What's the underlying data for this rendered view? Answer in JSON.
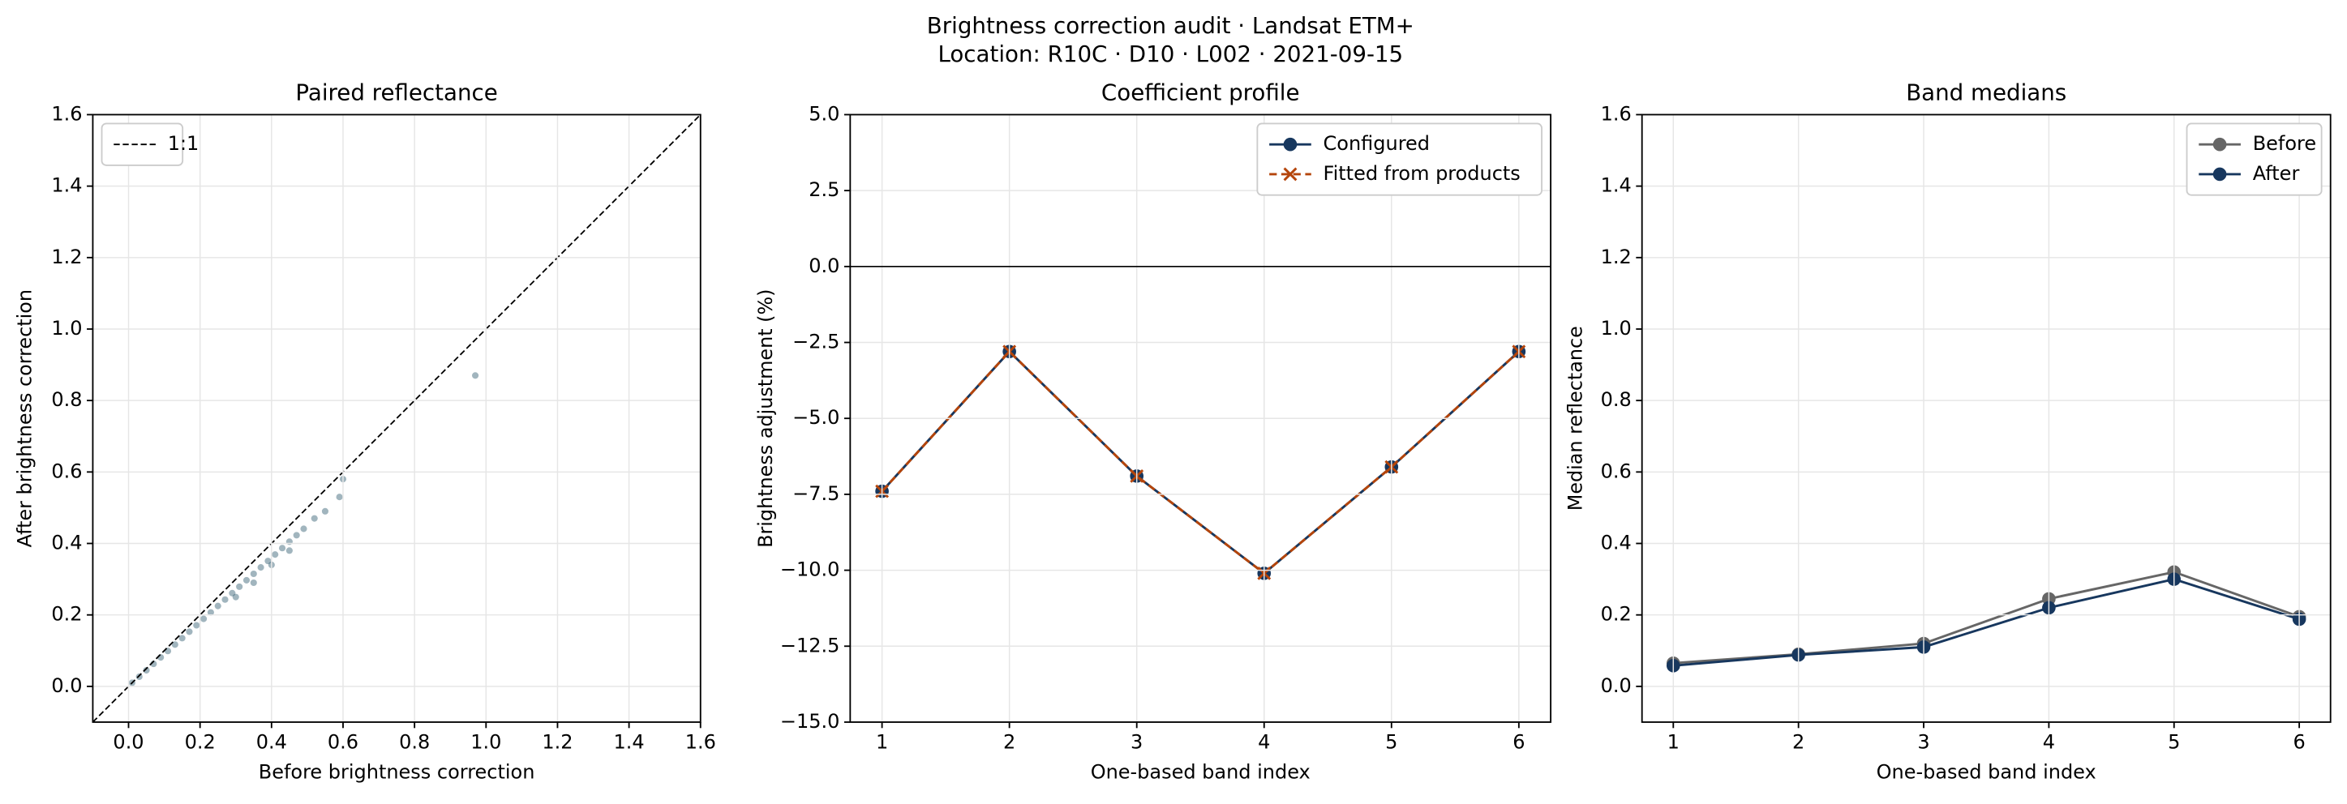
{
  "title": "Brightness correction audit · Landsat ETM+",
  "subtitle": "Location: R10C · D10 · L002 · 2021-09-15",
  "chart_data": [
    {
      "type": "scatter",
      "title": "Paired reflectance",
      "xlabel": "Before brightness correction",
      "ylabel": "After brightness correction",
      "xlim": [
        -0.1,
        1.6
      ],
      "ylim": [
        -0.1,
        1.6
      ],
      "xticks": [
        {
          "value": 0,
          "label": "0.0"
        },
        0.2,
        0.4,
        0.6,
        0.8,
        {
          "value": 1,
          "label": "1.0"
        },
        1.2,
        1.4,
        1.6
      ],
      "yticks": [
        {
          "value": 0,
          "label": "0.0"
        },
        0.2,
        0.4,
        0.6,
        0.8,
        {
          "value": 1,
          "label": "1.0"
        },
        1.2,
        1.4,
        1.6
      ],
      "grid": true,
      "legend": "upper left",
      "series": [
        {
          "color": "#2f5a6e",
          "x": [
            0.01,
            0.03,
            0.05,
            0.07,
            0.09,
            0.11,
            0.13,
            0.15,
            0.17,
            0.19,
            0.21,
            0.23,
            0.25,
            0.27,
            0.29,
            0.3,
            0.31,
            0.33,
            0.35,
            0.35,
            0.37,
            0.39,
            0.4,
            0.41,
            0.43,
            0.45,
            0.45,
            0.47,
            0.49,
            0.52,
            0.55,
            0.59,
            0.6,
            0.97
          ],
          "values": [
            0.01,
            0.027,
            0.045,
            0.063,
            0.081,
            0.099,
            0.117,
            0.135,
            0.153,
            0.171,
            0.189,
            0.207,
            0.225,
            0.243,
            0.261,
            0.25,
            0.279,
            0.297,
            0.315,
            0.29,
            0.333,
            0.351,
            0.34,
            0.369,
            0.387,
            0.405,
            0.38,
            0.423,
            0.441,
            0.47,
            0.49,
            0.53,
            0.58,
            0.87
          ]
        },
        {
          "name": "1:1",
          "color": "#000000",
          "style": "dashed",
          "x": [
            -0.1,
            1.6
          ],
          "values": [
            -0.1,
            1.6
          ]
        }
      ]
    },
    {
      "type": "line",
      "title": "Coefficient profile",
      "xlabel": "One-based band index",
      "ylabel": "Brightness adjustment (%)",
      "x": [
        1,
        2,
        3,
        4,
        5,
        6
      ],
      "xlim": [
        0.75,
        6.25
      ],
      "xticks": [
        1,
        2,
        3,
        4,
        5,
        6
      ],
      "ylim": [
        -15,
        5
      ],
      "yticks": [
        {
          "value": -15,
          "label": "−15.0"
        },
        {
          "value": -12.5,
          "label": "−12.5"
        },
        {
          "value": -10,
          "label": "−10.0"
        },
        {
          "value": -7.5,
          "label": "−7.5"
        },
        {
          "value": -5,
          "label": "−5.0"
        },
        {
          "value": -2.5,
          "label": "−2.5"
        },
        {
          "value": 0,
          "label": "0.0"
        },
        2.5,
        {
          "value": 5,
          "label": "5.0"
        }
      ],
      "hline": 0,
      "grid": true,
      "legend": "upper right",
      "series": [
        {
          "name": "Configured",
          "color": "#17375e",
          "marker": "o",
          "values": [
            -7.4,
            -2.8,
            -6.9,
            -10.1,
            -6.6,
            -2.8
          ]
        },
        {
          "name": "Fitted from products",
          "color": "#b5450b",
          "marker": "x",
          "style": "dashed",
          "values": [
            -7.4,
            -2.8,
            -6.9,
            -10.1,
            -6.6,
            -2.8
          ]
        }
      ]
    },
    {
      "type": "line",
      "title": "Band medians",
      "xlabel": "One-based band index",
      "ylabel": "Median reflectance",
      "x": [
        1,
        2,
        3,
        4,
        5,
        6
      ],
      "xlim": [
        0.75,
        6.25
      ],
      "xticks": [
        1,
        2,
        3,
        4,
        5,
        6
      ],
      "ylim": [
        -0.1,
        1.6
      ],
      "yticks": [
        {
          "value": 0,
          "label": "0.0"
        },
        0.2,
        0.4,
        0.6,
        0.8,
        {
          "value": 1,
          "label": "1.0"
        },
        1.2,
        1.4,
        1.6
      ],
      "grid": true,
      "legend": "upper right",
      "series": [
        {
          "name": "Before",
          "color": "#666666",
          "marker": "o",
          "values": [
            0.065,
            0.09,
            0.12,
            0.245,
            0.32,
            0.195
          ]
        },
        {
          "name": "After",
          "color": "#17375e",
          "marker": "o",
          "values": [
            0.058,
            0.088,
            0.11,
            0.22,
            0.3,
            0.188
          ]
        }
      ]
    }
  ]
}
